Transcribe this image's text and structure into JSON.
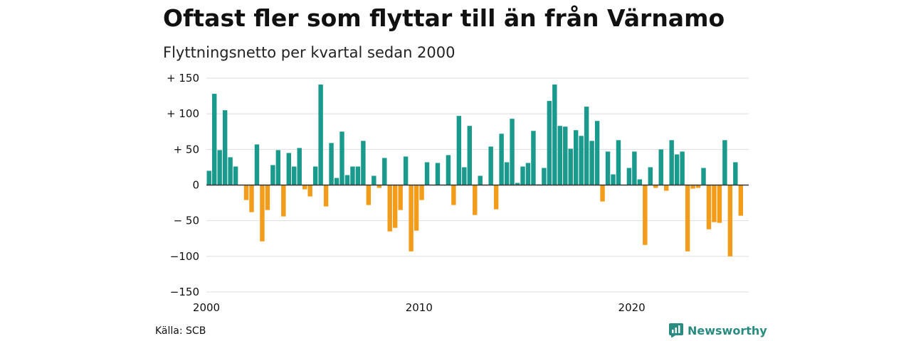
{
  "title": "Oftast fler som flyttar till än från Värnamo",
  "subtitle": "Flyttningsnetto per kvartal sedan 2000",
  "source": "Källa: SCB",
  "brand": {
    "name": "Newsworthy",
    "icon": "newsworthy-logo-icon"
  },
  "colors": {
    "positive": "#1a9a8c",
    "negative": "#f39c1a",
    "grid": "#dddddd",
    "zero_line": "#333333"
  },
  "chart_data": {
    "type": "bar",
    "title": "Oftast fler som flyttar till än från Värnamo",
    "subtitle": "Flyttningsnetto per kvartal sedan 2000",
    "xlabel": "",
    "ylabel": "",
    "ylim": [
      -150,
      150
    ],
    "xlim": [
      2000,
      2025.5
    ],
    "y_ticks": [
      {
        "value": 150,
        "label": "+ 150"
      },
      {
        "value": 100,
        "label": "+ 100"
      },
      {
        "value": 50,
        "label": "+  50"
      },
      {
        "value": 0,
        "label": "0"
      },
      {
        "value": -50,
        "label": "− 50"
      },
      {
        "value": -100,
        "label": "−100"
      },
      {
        "value": -150,
        "label": "−150"
      }
    ],
    "x_ticks": [
      {
        "value": 2000,
        "label": "2000"
      },
      {
        "value": 2010,
        "label": "2010"
      },
      {
        "value": 2020,
        "label": "2020"
      }
    ],
    "grid": "horizontal",
    "start": "2000 Q1",
    "frequency": "quarterly",
    "values": [
      20,
      128,
      49,
      105,
      39,
      26,
      0,
      -21,
      -38,
      57,
      -79,
      -35,
      28,
      49,
      -44,
      45,
      26,
      52,
      -6,
      -16,
      26,
      141,
      -30,
      59,
      10,
      75,
      14,
      26,
      26,
      62,
      -28,
      13,
      -4,
      38,
      -65,
      -60,
      -35,
      40,
      -93,
      -64,
      -21,
      32,
      0,
      31,
      0,
      42,
      -28,
      97,
      25,
      83,
      -42,
      13,
      0,
      54,
      -34,
      72,
      32,
      93,
      3,
      26,
      31,
      76,
      1,
      24,
      118,
      141,
      83,
      82,
      51,
      77,
      69,
      110,
      62,
      90,
      -23,
      47,
      15,
      63,
      0,
      24,
      47,
      8,
      -84,
      25,
      -4,
      50,
      -8,
      63,
      43,
      47,
      -93,
      -5,
      -4,
      24,
      -62,
      -52,
      -53,
      63,
      -100,
      32,
      -43
    ]
  }
}
